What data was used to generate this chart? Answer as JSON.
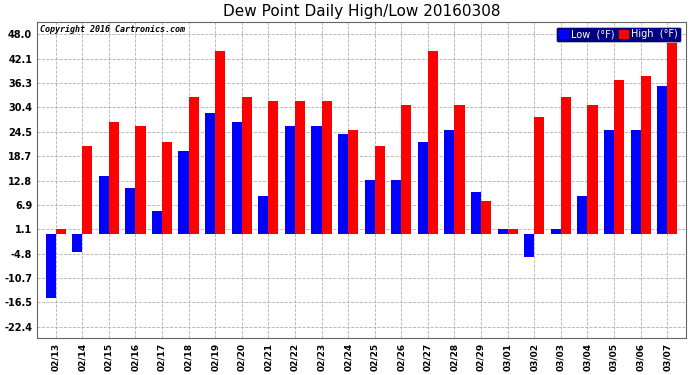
{
  "title": "Dew Point Daily High/Low 20160308",
  "copyright": "Copyright 2016 Cartronics.com",
  "dates": [
    "02/13",
    "02/14",
    "02/15",
    "02/16",
    "02/17",
    "02/18",
    "02/19",
    "02/20",
    "02/21",
    "02/22",
    "02/23",
    "02/24",
    "02/25",
    "02/26",
    "02/27",
    "02/28",
    "02/29",
    "03/01",
    "03/02",
    "03/03",
    "03/04",
    "03/05",
    "03/06",
    "03/07"
  ],
  "high": [
    1.1,
    21.0,
    27.0,
    26.0,
    22.0,
    33.0,
    44.0,
    33.0,
    32.0,
    32.0,
    32.0,
    25.0,
    21.0,
    31.0,
    44.0,
    31.0,
    8.0,
    1.1,
    28.0,
    33.0,
    31.0,
    37.0,
    38.0,
    48.0
  ],
  "low": [
    -15.5,
    -4.5,
    14.0,
    11.0,
    5.5,
    20.0,
    29.0,
    27.0,
    9.0,
    26.0,
    26.0,
    24.0,
    13.0,
    13.0,
    22.0,
    25.0,
    10.0,
    1.1,
    -5.5,
    1.1,
    9.0,
    25.0,
    25.0,
    35.5
  ],
  "high_color": "#ff0000",
  "low_color": "#0000ff",
  "bg_color": "#ffffff",
  "plot_bg_color": "#ffffff",
  "grid_color": "#b0b0b0",
  "yticks": [
    48.0,
    42.1,
    36.3,
    30.4,
    24.5,
    18.7,
    12.8,
    6.9,
    1.1,
    -4.8,
    -10.7,
    -16.5,
    -22.4
  ],
  "ymin": -25.0,
  "ymax": 51.0,
  "bar_width": 0.38
}
